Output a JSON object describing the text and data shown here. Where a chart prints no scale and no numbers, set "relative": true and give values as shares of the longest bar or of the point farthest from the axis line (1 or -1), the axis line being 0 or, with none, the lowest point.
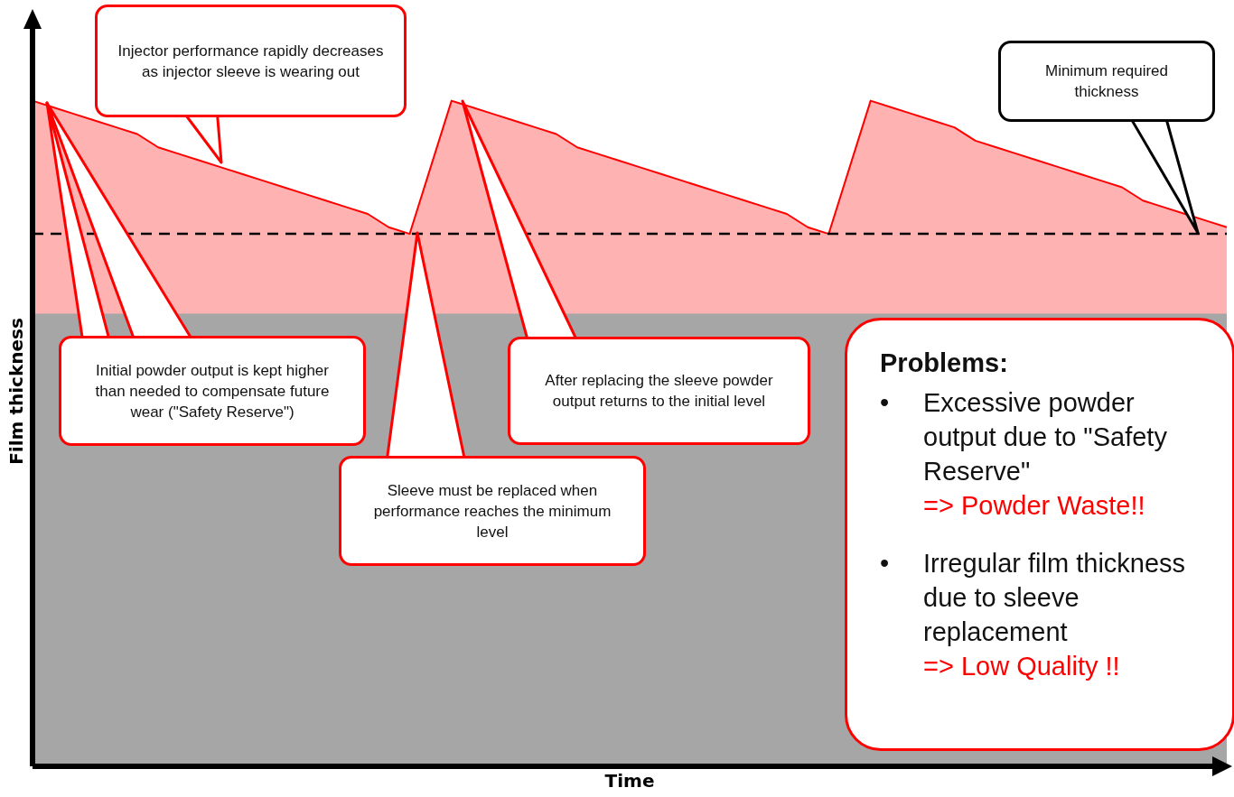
{
  "chart_data": {
    "type": "area",
    "relative": true,
    "xlabel": "Time",
    "ylabel": "Film thickness",
    "categories": [
      null,
      null,
      null,
      null,
      null,
      null,
      null,
      null,
      null,
      null,
      null,
      null,
      null,
      null,
      null,
      null,
      null,
      null,
      null,
      null,
      null,
      null,
      null,
      null,
      null,
      null,
      null,
      null,
      null,
      null,
      null,
      null,
      null,
      null,
      null,
      null,
      null,
      null,
      null,
      null,
      null,
      null,
      null,
      null,
      null,
      null,
      null,
      null,
      null,
      null,
      null,
      null,
      null,
      null,
      null,
      null,
      null,
      null
    ],
    "series": [
      {
        "color": "#ff0000",
        "values": [
          1,
          0.99,
          0.98,
          0.97,
          0.96,
          0.95,
          0.93,
          0.92,
          0.91,
          0.9,
          0.89,
          0.88,
          0.87,
          0.86,
          0.85,
          0.84,
          0.83,
          0.81,
          0.8,
          0.9,
          1,
          0.99,
          0.98,
          0.97,
          0.96,
          0.95,
          0.93,
          0.92,
          0.91,
          0.9,
          0.89,
          0.88,
          0.87,
          0.86,
          0.85,
          0.84,
          0.83,
          0.81,
          0.8,
          0.9,
          1,
          0.99,
          0.98,
          0.97,
          0.96,
          0.94,
          0.93,
          0.92,
          0.91,
          0.9,
          0.89,
          0.88,
          0.87,
          0.85,
          0.84,
          0.83,
          0.82,
          0.81
        ]
      }
    ],
    "bands": [
      {
        "axis": "y",
        "from": 0,
        "to": 0.68,
        "color": "#a6a6a6"
      }
    ],
    "ref_lines": [
      {
        "axis": "y",
        "value": 0.8,
        "color": "#000000",
        "line_style": "dashed"
      }
    ],
    "grid": false,
    "legend": false,
    "marker": "none",
    "annotations": [
      "Injector performance rapidly decreases as injector sleeve is wearing out",
      "Minimum required thickness",
      "Initial powder output is kept higher than needed to compensate future wear (\"Safety Reserve\")",
      "After replacing the sleeve powder output returns to the initial level",
      "Sleeve must be replaced when performance reaches the minimum level",
      "Problems:",
      "•",
      "Excessive powder output due to \"Safety Reserve\"",
      "=> Powder Waste!!",
      "•",
      "Irregular film thickness due to sleeve replacement",
      "=> Low Quality !!"
    ]
  }
}
